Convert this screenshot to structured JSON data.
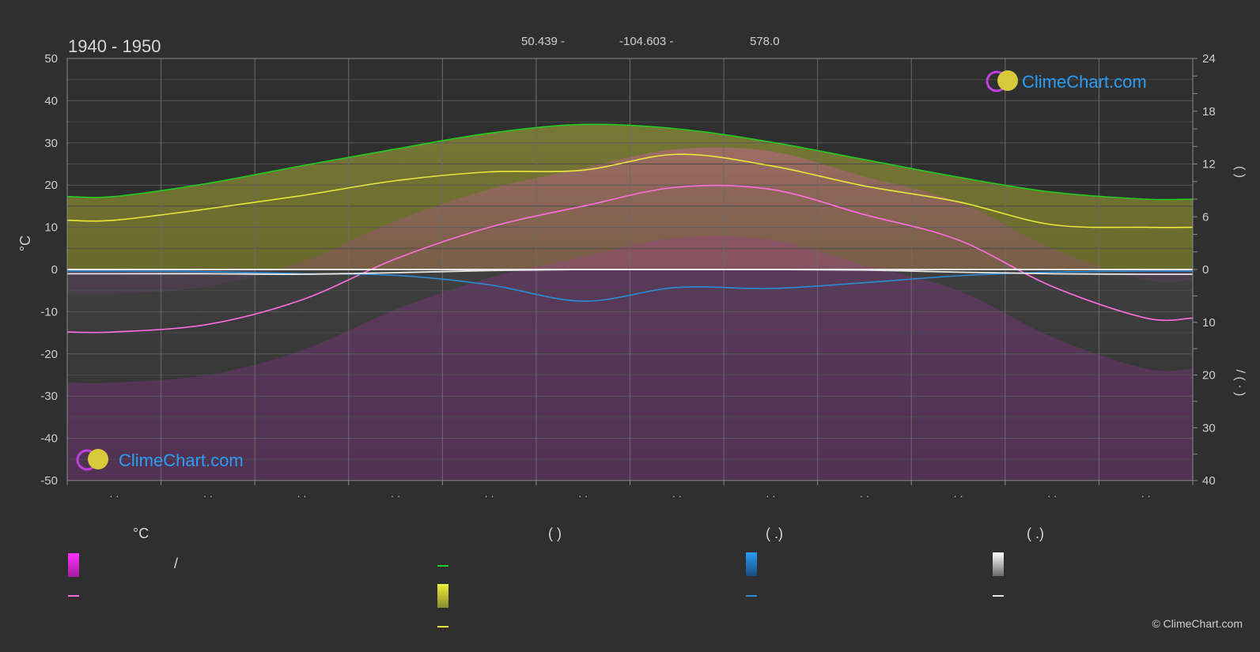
{
  "header": {
    "period": "1940 - 1950",
    "latitude": "50.439 -",
    "longitude": "-104.603 -",
    "elevation": "578.0"
  },
  "logo": {
    "text": "ClimeChart.com"
  },
  "copyright": "© ClimeChart.com",
  "legend": {
    "col1_header": "°C",
    "col1_range_sep": "/",
    "col2_header": "(          )",
    "col3_header": "(   .)",
    "col4_header": "(   .)"
  },
  "colors": {
    "background": "#2f2f2f",
    "grid": "#5a5a5a",
    "daylight": "#22cc22",
    "sunshine": "#e8e83a",
    "temp_max": "#ff6ee0",
    "precip": "#2a8cd8",
    "snow": "#e6e6e6",
    "temp_band": "#c040c0",
    "accent_logo": "#2a9df4"
  },
  "chart_data": {
    "type": "line",
    "xlabel": "",
    "ylabel_left": "°C",
    "ylim_left": [
      -50,
      50
    ],
    "yticks_left": [
      50,
      40,
      30,
      20,
      10,
      0,
      -10,
      -20,
      -30,
      -40,
      -50
    ],
    "ylabel_right_upper": "(  )",
    "ylim_right_upper": [
      0,
      24
    ],
    "yticks_right_upper": [
      24,
      18,
      12,
      6,
      0
    ],
    "ylabel_right_lower": "/  (  ·  )",
    "ylim_right_lower": [
      0,
      40
    ],
    "yticks_right_lower": [
      0,
      10,
      20,
      30,
      40
    ],
    "categories": [
      "· ·",
      "· ·",
      "· ·",
      "· ·",
      "· ·",
      "· ·",
      "· ·",
      "· ·",
      "· ·",
      "· ·",
      "· ·",
      "· ·"
    ],
    "x": [
      0,
      1,
      2,
      3,
      4,
      5,
      6,
      7,
      8,
      9,
      10,
      11
    ],
    "series": [
      {
        "key": "daylight",
        "axis": "right_upper",
        "values": [
          8.3,
          9.8,
          11.8,
          13.7,
          15.5,
          16.5,
          16.0,
          14.5,
          12.5,
          10.5,
          8.8,
          8.0
        ]
      },
      {
        "key": "sunshine",
        "axis": "right_upper",
        "values": [
          5.6,
          6.9,
          8.4,
          10.1,
          11.1,
          11.3,
          13.1,
          11.8,
          9.5,
          7.7,
          5.1,
          4.8
        ]
      },
      {
        "key": "temp_mean",
        "axis": "left",
        "values": [
          -14.8,
          -13.0,
          -7.2,
          2.5,
          10.0,
          15.0,
          19.5,
          19.0,
          13.0,
          7.0,
          -4.0,
          -11.5
        ]
      },
      {
        "key": "precip",
        "axis": "right_lower",
        "values": [
          0.3,
          0.4,
          0.8,
          1.1,
          2.9,
          6.0,
          3.4,
          3.6,
          2.5,
          1.2,
          0.5,
          0.3
        ]
      },
      {
        "key": "snow",
        "axis": "right_lower",
        "values": [
          0.8,
          0.8,
          0.9,
          0.6,
          0.2,
          0.0,
          0.0,
          0.0,
          0.1,
          0.5,
          0.8,
          0.9
        ]
      }
    ]
  }
}
